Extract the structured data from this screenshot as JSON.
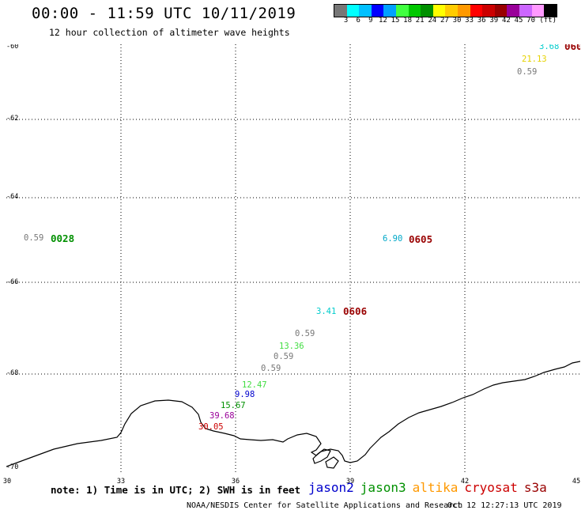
{
  "header": {
    "title": "00:00 - 11:59 UTC 10/11/2019",
    "subtitle": "12 hour collection of altimeter wave heights"
  },
  "colorbar": {
    "colors": [
      "#777777",
      "#00ffff",
      "#00c0ff",
      "#0000ff",
      "#00a0ff",
      "#40ff40",
      "#00c800",
      "#009000",
      "#ffff00",
      "#ffcc00",
      "#ff9900",
      "#ff0000",
      "#cc0000",
      "#990000",
      "#990099",
      "#cc66ff",
      "#ff99ff",
      "#000000"
    ],
    "labels": [
      "3",
      "6",
      "9",
      "12",
      "15",
      "18",
      "21",
      "24",
      "27",
      "30",
      "33",
      "36",
      "39",
      "42",
      "45",
      "70",
      "(ft)"
    ]
  },
  "axes": {
    "lat_labels": [
      "-60",
      "-62",
      "-64",
      "-66",
      "-68",
      "-70"
    ],
    "lon_labels": [
      "30",
      "33",
      "36",
      "39",
      "42",
      "45"
    ]
  },
  "swh_values": [
    {
      "text": "3.68",
      "color": "#00cccc"
    },
    {
      "text": "21.13",
      "color": "#e6d200"
    },
    {
      "text": "0.59",
      "color": "#777777"
    },
    {
      "text": "0.59",
      "color": "#777777"
    },
    {
      "text": "6.90",
      "color": "#00a8c8"
    },
    {
      "text": "3.41",
      "color": "#00cccc"
    },
    {
      "text": "0.59",
      "color": "#777777"
    },
    {
      "text": "13.36",
      "color": "#40dd40"
    },
    {
      "text": "0.59",
      "color": "#777777"
    },
    {
      "text": "0.59",
      "color": "#777777"
    },
    {
      "text": "12.47",
      "color": "#40dd40"
    },
    {
      "text": "9.98",
      "color": "#0000cc"
    },
    {
      "text": "15.67",
      "color": "#009000"
    },
    {
      "text": "39.68",
      "color": "#990099"
    },
    {
      "text": "30.05",
      "color": "#cc0000"
    }
  ],
  "pass_times": [
    {
      "text": "060",
      "color": "#990000"
    },
    {
      "text": "0028",
      "color": "#009000"
    },
    {
      "text": "0605",
      "color": "#990000"
    },
    {
      "text": "0606",
      "color": "#990000"
    }
  ],
  "footer": {
    "note": "note: 1) Time is in UTC; 2) SWH is in feet",
    "legend": [
      {
        "text": "jason2",
        "color": "#0000cc"
      },
      {
        "text": "jason3",
        "color": "#009000"
      },
      {
        "text": "altika",
        "color": "#ff9900"
      },
      {
        "text": "cryosat",
        "color": "#cc0000"
      },
      {
        "text": "s3a",
        "color": "#990000"
      }
    ],
    "credit": "NOAA/NESDIS Center for Satellite Applications and Research",
    "timestamp": "Oct 12 12:27:13 UTC 2019"
  }
}
